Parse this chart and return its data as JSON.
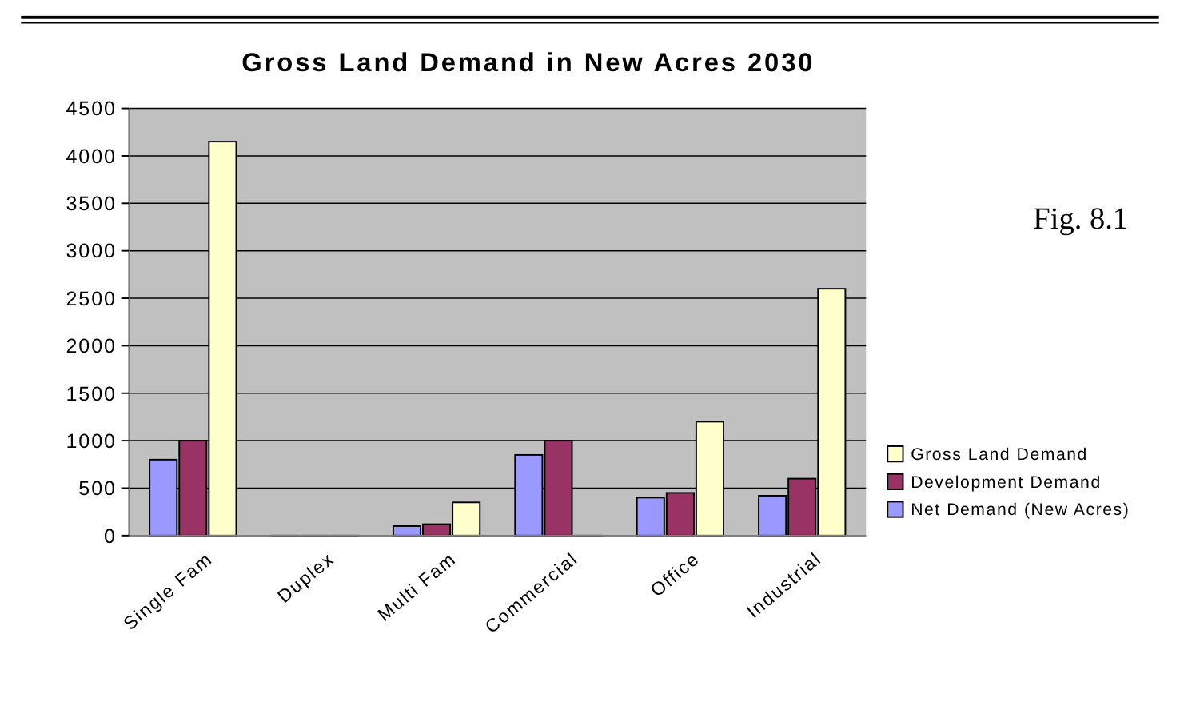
{
  "chart_data": {
    "type": "bar",
    "title": "Gross Land Demand in New Acres 2030",
    "categories": [
      "Single Fam",
      "Duplex",
      "Multi Fam",
      "Commercial",
      "Office",
      "Industrial"
    ],
    "series": [
      {
        "name": "Net Demand (New Acres)",
        "color": "#9999ff",
        "values": [
          800,
          0,
          100,
          850,
          400,
          420
        ]
      },
      {
        "name": "Development Demand",
        "color": "#993366",
        "values": [
          1000,
          0,
          120,
          1000,
          450,
          600
        ]
      },
      {
        "name": "Gross Land Demand",
        "color": "#ffffcc",
        "values": [
          4150,
          0,
          350,
          0,
          1200,
          2600
        ]
      }
    ],
    "ylim": [
      0,
      4500
    ],
    "yticks": [
      0,
      500,
      1000,
      1500,
      2000,
      2500,
      3000,
      3500,
      4000,
      4500
    ],
    "grid": "y",
    "legend": "right",
    "annotations": [
      "Fig. 8.1"
    ]
  }
}
